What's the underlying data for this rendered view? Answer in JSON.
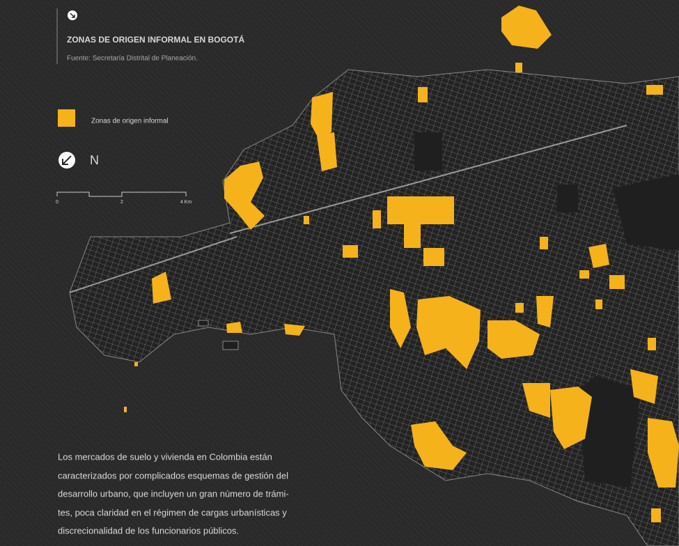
{
  "header": {
    "title": "ZONAS DE ORIGEN INFORMAL EN BOGOTÁ",
    "source": "Fuente: Secretaría Distrital de Planeación."
  },
  "legend": {
    "label": "Zonas de origen informal"
  },
  "north": {
    "label": "N"
  },
  "scale": {
    "labels": [
      "0",
      "2",
      "4 Km"
    ]
  },
  "paragraph": {
    "lines": [
      "Los mercados de suelo y vivienda en Colombia están",
      "caracterizados por complicados esquemas de gestión del",
      "desarrollo urbano, que incluyen un gran número de trámi-",
      "tes, poca claridad en el régimen de cargas urbanísticas y",
      "discrecionalidad de los funcionarios públicos."
    ]
  }
}
